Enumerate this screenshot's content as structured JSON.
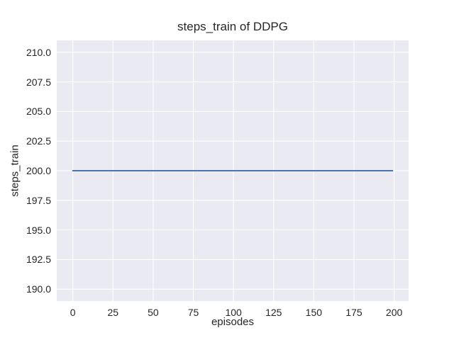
{
  "chart_data": {
    "type": "line",
    "title": "steps_train of DDPG",
    "xlabel": "episodes",
    "ylabel": "steps_train",
    "x_ticks": [
      0,
      25,
      50,
      75,
      100,
      125,
      150,
      175,
      200
    ],
    "x_tick_labels": [
      "0",
      "25",
      "50",
      "75",
      "100",
      "125",
      "150",
      "175",
      "200"
    ],
    "y_ticks": [
      190.0,
      192.5,
      195.0,
      197.5,
      200.0,
      202.5,
      205.0,
      207.5,
      210.0
    ],
    "y_tick_labels": [
      "190.0",
      "192.5",
      "195.0",
      "197.5",
      "200.0",
      "202.5",
      "205.0",
      "207.5",
      "210.0"
    ],
    "xlim": [
      -10,
      209
    ],
    "ylim": [
      189,
      211
    ],
    "grid": true,
    "legend_visible": false,
    "plot_background": "#eaeaf2",
    "grid_color": "#ffffff",
    "text_color": "#262626",
    "series": [
      {
        "name": "steps_train",
        "color": "#4c72b0",
        "x": [
          0,
          199
        ],
        "y": [
          200,
          200
        ],
        "description": "constant value 200 across all episodes 0-199"
      }
    ]
  }
}
